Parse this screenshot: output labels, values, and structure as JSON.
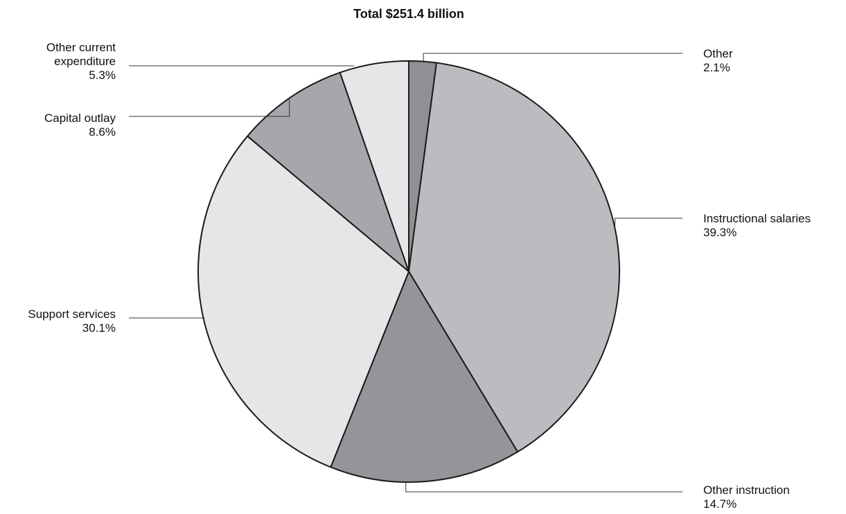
{
  "chart_data": {
    "type": "pie",
    "title": "Total $251.4 billion",
    "start": "12 o'clock",
    "direction": "clockwise",
    "slices": [
      {
        "label_lines": [
          "Other"
        ],
        "pct_label": "2.1%",
        "value": 2.1,
        "color": "#8f9093"
      },
      {
        "label_lines": [
          "Instructional salaries"
        ],
        "pct_label": "39.3%",
        "value": 39.3,
        "color": "#bbbcbf"
      },
      {
        "label_lines": [
          "Other instruction"
        ],
        "pct_label": "14.7%",
        "value": 14.7,
        "color": "#949598"
      },
      {
        "label_lines": [
          "Support services"
        ],
        "pct_label": "30.1%",
        "value": 30.1,
        "color": "#e6e6e8"
      },
      {
        "label_lines": [
          "Capital outlay"
        ],
        "pct_label": "8.6%",
        "value": 8.6,
        "color": "#a6a7aa"
      },
      {
        "label_lines": [
          "Other current",
          "expenditure"
        ],
        "pct_label": "5.3%",
        "value": 5.3,
        "color": "#e6e6e8"
      }
    ]
  }
}
